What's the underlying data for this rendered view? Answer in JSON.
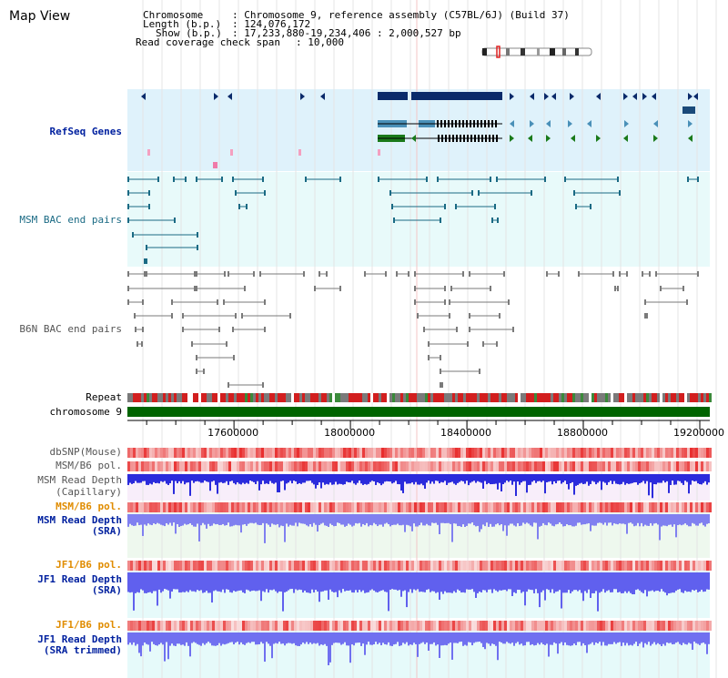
{
  "app": {
    "title": "Map View"
  },
  "info": {
    "chromosome_label": "Chromosome",
    "chromosome_value": ": Chromosome 9, reference assembly (C57BL/6J) (Build 37)",
    "length_label": "Length (b.p.)",
    "length_value": ": 124,076,172",
    "show_label": "Show (b.p.)",
    "show_value": ": 17,233,880-19,234,406 : 2,000,527 bp",
    "span_label": "Read coverage check span",
    "span_value": ": 10,000"
  },
  "tracks": {
    "refseq": "RefSeq Genes",
    "msm_bac": "MSM BAC end pairs",
    "b6n_bac": "B6N BAC end pairs",
    "repeat": "Repeat",
    "chromosome": "chromosome 9",
    "dbsnp": "dbSNP(Mouse)",
    "msm_b6_pol_1": "MSM/B6 pol.",
    "msm_read_depth_cap_1": "MSM Read Depth",
    "msm_read_depth_cap_2": "(Capillary)",
    "msm_b6_pol_2": "MSM/B6 pol.",
    "msm_read_depth_sra_1": "MSM Read Depth",
    "msm_read_depth_sra_2": "(SRA)",
    "jf1_b6_pol_1": "JF1/B6 pol.",
    "jf1_read_depth_sra_1": "JF1 Read Depth",
    "jf1_read_depth_sra_2": "(SRA)",
    "jf1_b6_pol_2": "JF1/B6 pol.",
    "jf1_read_depth_trim_1": "JF1 Read Depth",
    "jf1_read_depth_trim_2": "(SRA trimmed)"
  },
  "axis": {
    "start": 17233880,
    "end": 19234406,
    "ticks": [
      17600000,
      18000000,
      18400000,
      18800000,
      19200000
    ],
    "tick_labels": [
      "17600000",
      "18000000",
      "18400000",
      "18800000",
      "19200000"
    ]
  },
  "colors": {
    "refseq_bg": "#dff2fb",
    "msm_bac_bg": "#e8fafa",
    "chromosome_bar": "#006400",
    "gene_navy": "#0a2a6a",
    "gene_steel": "#4a90b8",
    "gene_green": "#1a7a1a",
    "depth_blue": "#2b2bdc",
    "depth_light": "#8080f0",
    "pol_red": "#e83030"
  }
}
